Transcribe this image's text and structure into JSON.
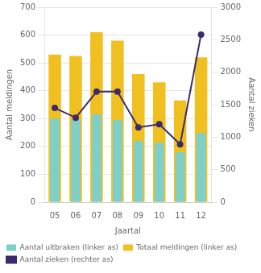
{
  "chart_data": {
    "type": "bar",
    "xlabel": "Jaartal",
    "ylabel": "Aantal meldingen",
    "y2label": "Aantal zieken",
    "categories": [
      "05",
      "06",
      "07",
      "08",
      "09",
      "10",
      "11",
      "12"
    ],
    "series": [
      {
        "name": "Aantal uitbraken (linker as)",
        "color": "#7ECECA",
        "values": [
          300,
          295,
          315,
          295,
          220,
          213,
          180,
          248
        ]
      },
      {
        "name": "Totaal meldingen (linker as)",
        "color": "#F0C020",
        "values": [
          530,
          525,
          610,
          580,
          460,
          430,
          365,
          520
        ]
      },
      {
        "name": "Aantal zieken (rechter as)",
        "type": "line",
        "axis": "y2",
        "color": "#3B2B6E",
        "marker": "circle",
        "line_style": "solid",
        "values": [
          1450,
          1300,
          1700,
          1700,
          1150,
          1200,
          890,
          2580
        ]
      }
    ],
    "ylim": [
      0,
      700
    ],
    "yticks": [
      0,
      100,
      200,
      300,
      400,
      500,
      600,
      700
    ],
    "y2lim": [
      0,
      3000
    ],
    "y2ticks": [
      0,
      500,
      1000,
      1500,
      2000,
      2500,
      3000
    ],
    "grid": true,
    "legend": "bottom"
  }
}
